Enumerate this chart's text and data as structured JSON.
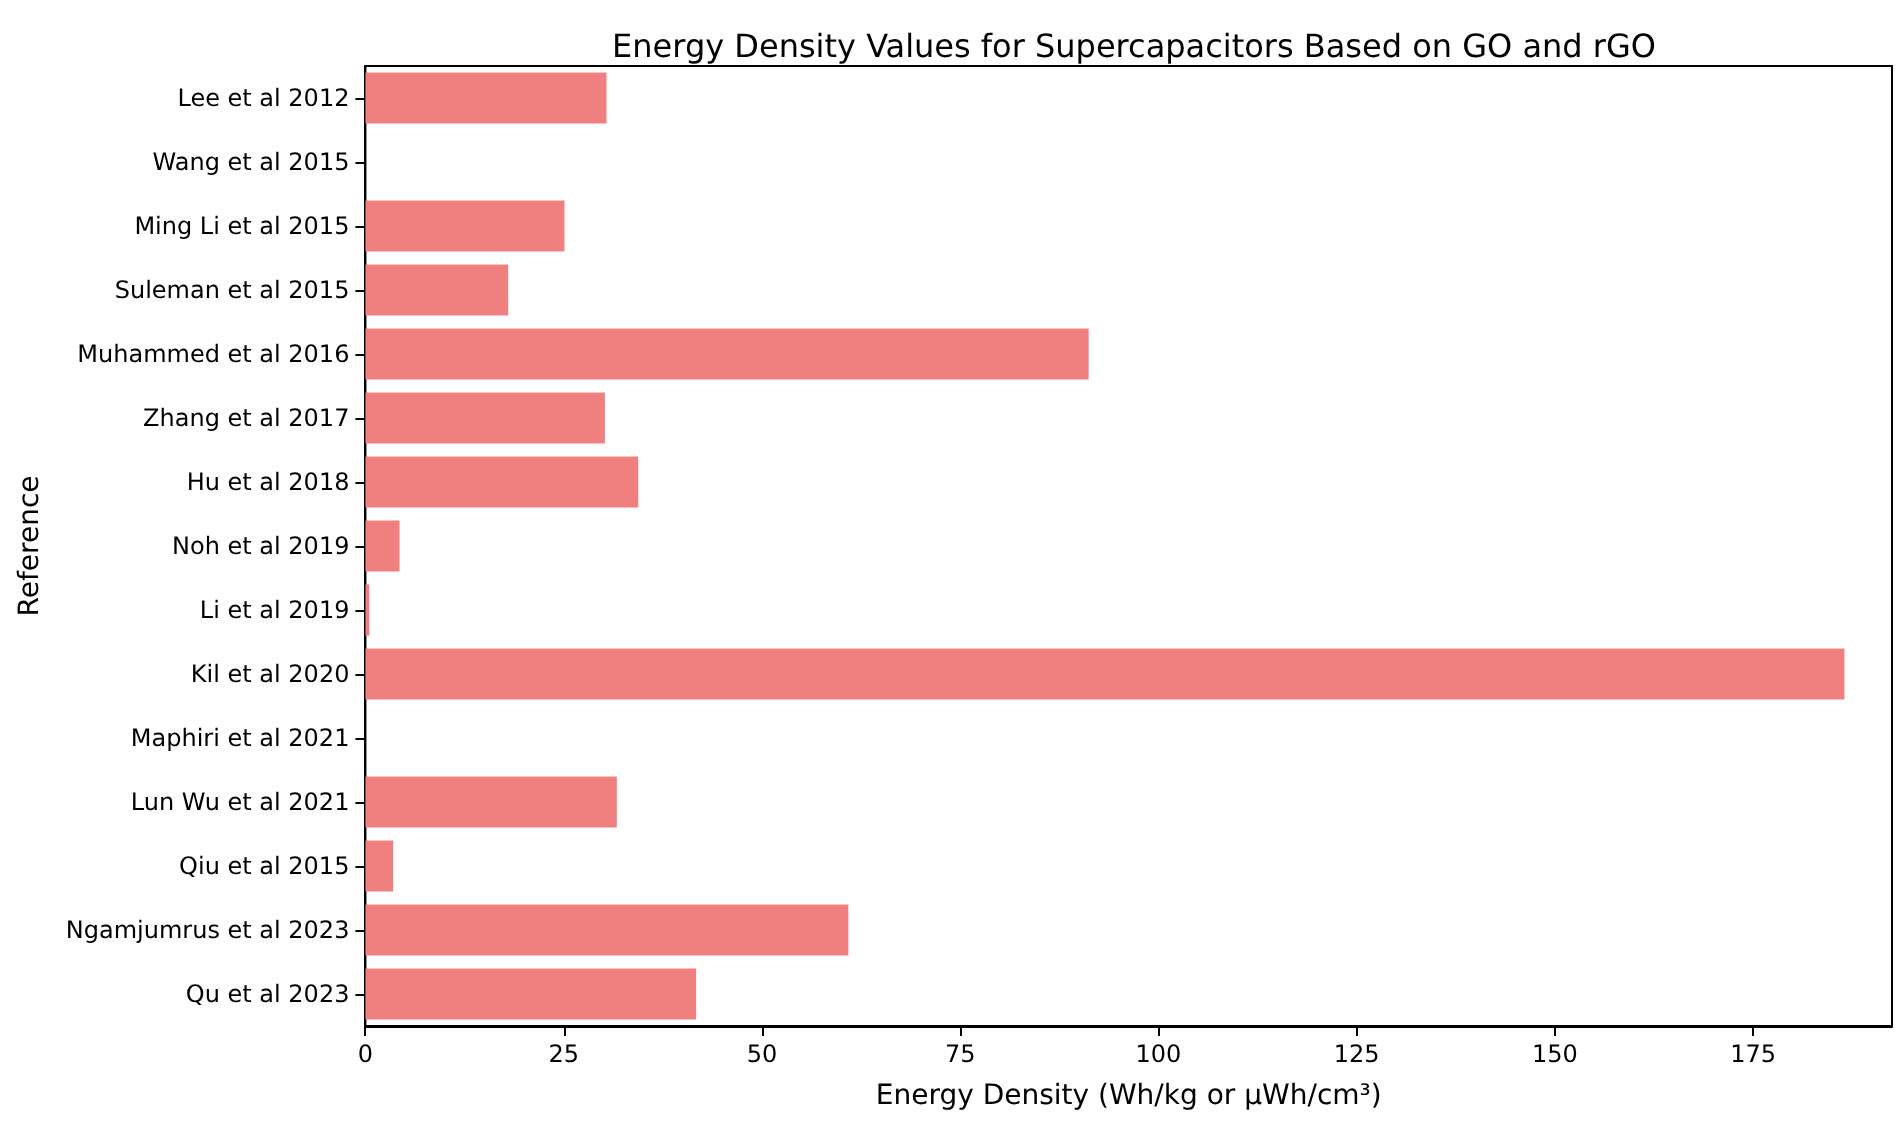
{
  "chart_data": {
    "type": "bar",
    "orientation": "horizontal",
    "title": "Energy Density Values for Supercapacitors Based on GO and rGO",
    "xlabel": "Energy Density (Wh/kg or µWh/cm³)",
    "ylabel": "Reference",
    "categories": [
      "Lee et al 2012",
      "Wang et al 2015",
      "Ming Li et al 2015",
      "Suleman et al 2015",
      "Muhammed et al 2016",
      "Zhang et al 2017",
      "Hu et al 2018",
      "Noh et al 2019",
      "Li et al 2019",
      "Kil et al 2020",
      "Maphiri et al 2021",
      "Lun Wu et al 2021",
      "Qiu et al 2015",
      "Ngamjumrus et al 2023",
      "Qu et al 2023"
    ],
    "values": [
      30.4,
      0,
      25.1,
      18.0,
      91.2,
      30.2,
      34.4,
      4.3,
      0.5,
      186.5,
      0,
      31.7,
      3.5,
      60.9,
      41.7
    ],
    "color": "#f08080",
    "xlim": [
      0,
      192.5
    ],
    "xticks": [
      0,
      25,
      50,
      75,
      100,
      125,
      150,
      175
    ],
    "grid": false
  }
}
